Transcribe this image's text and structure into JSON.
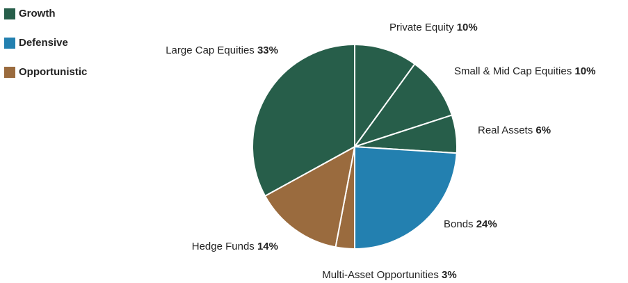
{
  "chart_data": {
    "type": "pie",
    "categories": [
      "Private Equity",
      "Small & Mid Cap Equities",
      "Real Assets",
      "Bonds",
      "Multi-Asset Opportunities",
      "Hedge Funds",
      "Large Cap Equities"
    ],
    "values": [
      10,
      10,
      6,
      24,
      3,
      14,
      33
    ],
    "value_labels": [
      "10%",
      "10%",
      "6%",
      "24%",
      "3%",
      "14%",
      "33%"
    ],
    "colors": [
      "#275e4a",
      "#275e4a",
      "#275e4a",
      "#2380b0",
      "#9a6b3e",
      "#9a6b3e",
      "#275e4a"
    ],
    "legend": [
      {
        "name": "Growth",
        "color": "#275e4a"
      },
      {
        "name": "Defensive",
        "color": "#2380b0"
      },
      {
        "name": "Opportunistic",
        "color": "#9a6b3e"
      }
    ]
  }
}
